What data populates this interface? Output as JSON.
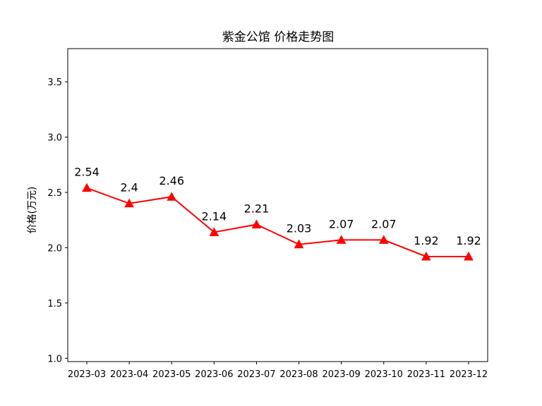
{
  "chart_data": {
    "type": "line",
    "title": "紫金公馆 价格走势图",
    "xlabel": "",
    "ylabel": "价格(万元)",
    "categories": [
      "2023-03",
      "2023-04",
      "2023-05",
      "2023-06",
      "2023-07",
      "2023-08",
      "2023-09",
      "2023-10",
      "2023-11",
      "2023-12"
    ],
    "series": [
      {
        "values": [
          2.54,
          2.4,
          2.46,
          2.14,
          2.21,
          2.03,
          2.07,
          2.07,
          1.92,
          1.92
        ],
        "labels": [
          "2.54",
          "2.4",
          "2.46",
          "2.14",
          "2.21",
          "2.03",
          "2.07",
          "2.07",
          "1.92",
          "1.92"
        ],
        "color": "#ff0000",
        "marker": "triangle"
      }
    ],
    "ylim": [
      0.97,
      3.8
    ],
    "yticks": [
      "1.0",
      "1.5",
      "2.0",
      "2.5",
      "3.0",
      "3.5"
    ],
    "grid": false
  }
}
